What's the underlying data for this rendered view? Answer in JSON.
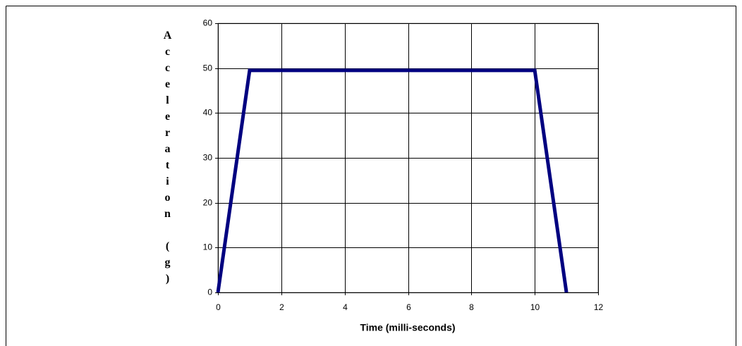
{
  "chart_data": {
    "type": "line",
    "x_label": "Time (milli-seconds)",
    "y_label": "Acceleration (g)",
    "x": [
      0,
      1,
      10,
      11
    ],
    "values": [
      0,
      49.5,
      49.5,
      0
    ],
    "color": "#000080",
    "xlim": [
      0,
      12
    ],
    "xticks": [
      0,
      2,
      4,
      6,
      8,
      10,
      12
    ],
    "ylim": [
      0,
      60
    ],
    "yticks": [
      0,
      10,
      20,
      30,
      40,
      50,
      60
    ],
    "grid": true
  }
}
